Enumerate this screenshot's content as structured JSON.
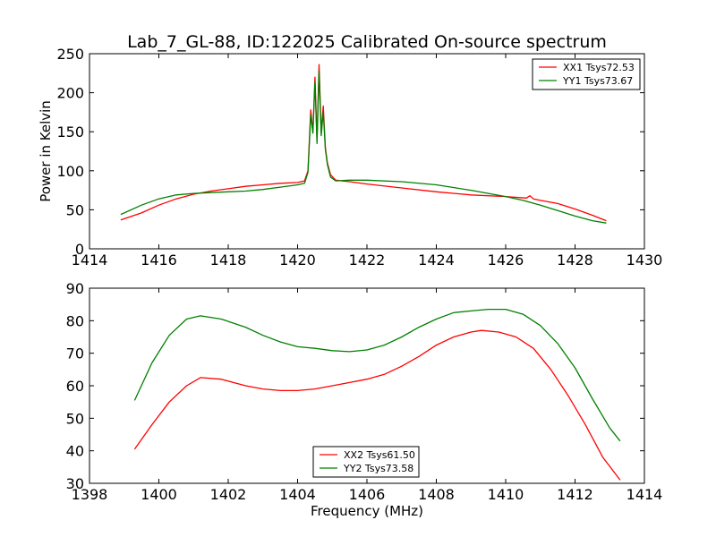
{
  "title": "Lab_7_GL-88, ID:122025 Calibrated On-source spectrum",
  "chart_data": [
    {
      "type": "line",
      "ylabel": "Power in Kelvin",
      "xlabel": "",
      "xlim": [
        1414,
        1430
      ],
      "ylim": [
        0,
        250
      ],
      "xticks": [
        1414,
        1416,
        1418,
        1420,
        1422,
        1424,
        1426,
        1428,
        1430
      ],
      "yticks": [
        0,
        50,
        100,
        150,
        200,
        250
      ],
      "legend_position": "top-right",
      "series": [
        {
          "name": "XX1 Tsys72.53",
          "color": "#ff0000",
          "x": [
            1414.9,
            1415.5,
            1416.0,
            1416.5,
            1417.0,
            1417.5,
            1418.0,
            1418.5,
            1419.0,
            1419.5,
            1420.0,
            1420.2,
            1420.3,
            1420.38,
            1420.44,
            1420.5,
            1420.56,
            1420.62,
            1420.68,
            1420.74,
            1420.8,
            1420.86,
            1420.95,
            1421.1,
            1421.5,
            1422.0,
            1423.0,
            1424.0,
            1425.0,
            1426.0,
            1426.6,
            1426.7,
            1426.8,
            1427.0,
            1427.5,
            1428.0,
            1428.5,
            1428.9
          ],
          "values": [
            37,
            46,
            56,
            64,
            70,
            74,
            77,
            80,
            82,
            84,
            85,
            87,
            100,
            178,
            150,
            220,
            140,
            236,
            150,
            183,
            130,
            110,
            95,
            88,
            86,
            83,
            78,
            73,
            69,
            67,
            65,
            68,
            64,
            62,
            58,
            51,
            43,
            36
          ]
        },
        {
          "name": "YY1 Tsys73.67",
          "color": "#008000",
          "x": [
            1414.9,
            1415.5,
            1416.0,
            1416.5,
            1417.0,
            1417.5,
            1418.0,
            1418.5,
            1419.0,
            1419.5,
            1420.0,
            1420.2,
            1420.3,
            1420.38,
            1420.44,
            1420.5,
            1420.56,
            1420.62,
            1420.68,
            1420.74,
            1420.8,
            1420.86,
            1420.95,
            1421.1,
            1421.5,
            1422.0,
            1423.0,
            1424.0,
            1425.0,
            1426.0,
            1426.5,
            1427.0,
            1427.5,
            1428.0,
            1428.5,
            1428.9
          ],
          "values": [
            44,
            56,
            64,
            69,
            71,
            72,
            73,
            74,
            76,
            79,
            82,
            84,
            98,
            172,
            148,
            214,
            135,
            228,
            145,
            176,
            128,
            108,
            92,
            87,
            88,
            88,
            86,
            82,
            75,
            67,
            62,
            56,
            49,
            42,
            36,
            33
          ]
        }
      ]
    },
    {
      "type": "line",
      "ylabel": "",
      "xlabel": "Frequency (MHz)",
      "xlim": [
        1398,
        1414
      ],
      "ylim": [
        30,
        90
      ],
      "xticks": [
        1398,
        1400,
        1402,
        1404,
        1406,
        1408,
        1410,
        1412,
        1414
      ],
      "yticks": [
        30,
        40,
        50,
        60,
        70,
        80,
        90
      ],
      "legend_position": "bottom-center",
      "series": [
        {
          "name": "XX2 Tsys61.50",
          "color": "#ff0000",
          "x": [
            1399.3,
            1399.8,
            1400.3,
            1400.8,
            1401.2,
            1401.8,
            1402.5,
            1403.0,
            1403.5,
            1404.0,
            1404.5,
            1405.0,
            1405.5,
            1406.0,
            1406.5,
            1407.0,
            1407.5,
            1408.0,
            1408.5,
            1409.0,
            1409.3,
            1409.8,
            1410.3,
            1410.8,
            1411.3,
            1411.8,
            1412.3,
            1412.8,
            1413.3
          ],
          "values": [
            40.5,
            48,
            55,
            60,
            62.5,
            62,
            60,
            59,
            58.5,
            58.5,
            59,
            60,
            61,
            62,
            63.5,
            66,
            69,
            72.5,
            75,
            76.5,
            77,
            76.5,
            75,
            71.5,
            65,
            57,
            48,
            38,
            31
          ]
        },
        {
          "name": "YY2 Tsys73.58",
          "color": "#008000",
          "x": [
            1399.3,
            1399.8,
            1400.3,
            1400.8,
            1401.2,
            1401.8,
            1402.5,
            1403.0,
            1403.5,
            1404.0,
            1404.5,
            1405.0,
            1405.5,
            1406.0,
            1406.5,
            1407.0,
            1407.5,
            1408.0,
            1408.5,
            1409.0,
            1409.5,
            1410.0,
            1410.5,
            1411.0,
            1411.5,
            1412.0,
            1412.5,
            1413.0,
            1413.3
          ],
          "values": [
            55.5,
            67,
            75.5,
            80.5,
            81.5,
            80.5,
            78,
            75.5,
            73.5,
            72,
            71.5,
            70.8,
            70.5,
            71,
            72.5,
            75,
            78,
            80.5,
            82.5,
            83,
            83.5,
            83.5,
            82,
            78.5,
            73,
            65.5,
            56,
            47,
            43
          ]
        }
      ]
    }
  ]
}
